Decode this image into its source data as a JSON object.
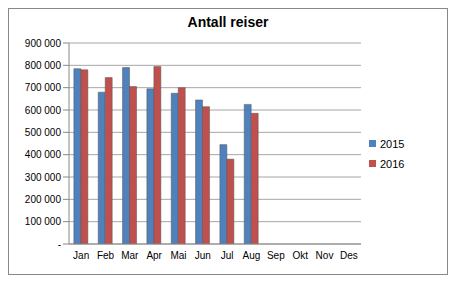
{
  "chart_data": {
    "type": "bar",
    "title": "Antall reiser",
    "categories": [
      "Jan",
      "Feb",
      "Mar",
      "Apr",
      "Mai",
      "Jun",
      "Jul",
      "Aug",
      "Sep",
      "Okt",
      "Nov",
      "Des"
    ],
    "series": [
      {
        "name": "2015",
        "color": "#4f81bd",
        "values": [
          785000,
          680000,
          790000,
          695000,
          675000,
          645000,
          445000,
          625000,
          null,
          null,
          null,
          null
        ]
      },
      {
        "name": "2016",
        "color": "#c0504d",
        "values": [
          780000,
          745000,
          705000,
          795000,
          700000,
          615000,
          380000,
          585000,
          null,
          null,
          null,
          null
        ]
      }
    ],
    "ylim": [
      0,
      900000
    ],
    "yticks": [
      {
        "value": 0,
        "label": "-"
      },
      {
        "value": 100000,
        "label": "100 000"
      },
      {
        "value": 200000,
        "label": "200 000"
      },
      {
        "value": 300000,
        "label": "300 000"
      },
      {
        "value": 400000,
        "label": "400 000"
      },
      {
        "value": 500000,
        "label": "500 000"
      },
      {
        "value": 600000,
        "label": "600 000"
      },
      {
        "value": 700000,
        "label": "700 000"
      },
      {
        "value": 800000,
        "label": "800 000"
      },
      {
        "value": 900000,
        "label": "900 000"
      }
    ],
    "grid": true,
    "legend": "right"
  }
}
